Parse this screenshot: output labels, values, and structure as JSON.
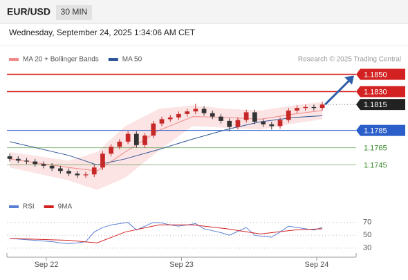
{
  "header": {
    "symbol": "EUR/USD",
    "timeframe": "30 MIN",
    "datetime": "Wednesday, September 24, 2025 1:34:06 AM CET"
  },
  "chart_data": [
    {
      "type": "candlestick",
      "legend": [
        {
          "name": "MA 20 + Bollinger Bands",
          "color": "#ef8a8a"
        },
        {
          "name": "MA 50",
          "color": "#2f5597"
        }
      ],
      "source": "Research © 2025 Trading Central",
      "xlim": [
        -7,
        55
      ],
      "xticks": [
        {
          "value": 0,
          "label": "Sep 22"
        },
        {
          "value": 24,
          "label": "Sep 23"
        },
        {
          "value": 48,
          "label": "Sep 24"
        }
      ],
      "ylim": [
        1.1711,
        1.186
      ],
      "up_color": "#c62828",
      "down_color": "#333333",
      "x": [
        -6.5,
        -5,
        -3.5,
        -2,
        -0.5,
        1,
        2.5,
        4,
        5.5,
        7,
        8.5,
        10,
        11.5,
        13,
        14.5,
        16,
        17.5,
        19,
        20.5,
        22,
        23.5,
        25,
        26.5,
        28,
        29.5,
        31,
        32.5,
        34,
        35.5,
        37,
        38.5,
        40,
        41.5,
        43,
        44.5,
        46,
        47.5,
        49
      ],
      "open": [
        1.1755,
        1.1752,
        1.175,
        1.1749,
        1.1746,
        1.1744,
        1.1741,
        1.1738,
        1.1735,
        1.1733,
        1.1734,
        1.1742,
        1.1758,
        1.1766,
        1.1772,
        1.1781,
        1.1768,
        1.1779,
        1.1793,
        1.1798,
        1.18,
        1.1804,
        1.1807,
        1.181,
        1.1805,
        1.1801,
        1.1796,
        1.1789,
        1.1797,
        1.1806,
        1.1795,
        1.1792,
        1.179,
        1.1797,
        1.1808,
        1.1811,
        1.1812,
        1.1811
      ],
      "high": [
        1.1758,
        1.1755,
        1.1753,
        1.1752,
        1.1749,
        1.1747,
        1.1744,
        1.1741,
        1.1738,
        1.1737,
        1.1745,
        1.1761,
        1.1769,
        1.1775,
        1.1784,
        1.1784,
        1.1782,
        1.1796,
        1.1801,
        1.1803,
        1.1807,
        1.181,
        1.1816,
        1.1813,
        1.1808,
        1.1804,
        1.1799,
        1.18,
        1.1809,
        1.1809,
        1.1798,
        1.1795,
        1.18,
        1.1811,
        1.1814,
        1.1815,
        1.1815,
        1.1818
      ],
      "low": [
        1.1749,
        1.1747,
        1.1746,
        1.1743,
        1.1741,
        1.1738,
        1.1735,
        1.1732,
        1.173,
        1.173,
        1.1731,
        1.1739,
        1.1755,
        1.1763,
        1.1769,
        1.1765,
        1.1765,
        1.1776,
        1.179,
        1.1795,
        1.1797,
        1.1801,
        1.1804,
        1.1802,
        1.1798,
        1.1793,
        1.1784,
        1.1786,
        1.1794,
        1.1792,
        1.1789,
        1.1786,
        1.1787,
        1.1794,
        1.1805,
        1.1808,
        1.1808,
        1.1808
      ],
      "close": [
        1.1752,
        1.175,
        1.1749,
        1.1746,
        1.1744,
        1.1741,
        1.1738,
        1.1735,
        1.1733,
        1.1734,
        1.1742,
        1.1758,
        1.1766,
        1.1772,
        1.1781,
        1.1768,
        1.1779,
        1.1793,
        1.1798,
        1.18,
        1.1804,
        1.1807,
        1.181,
        1.1805,
        1.1801,
        1.1796,
        1.1789,
        1.1797,
        1.1806,
        1.1795,
        1.1792,
        1.179,
        1.1797,
        1.1808,
        1.1811,
        1.1812,
        1.1811,
        1.1815
      ],
      "ma_x": [
        -6.5,
        4,
        9,
        14,
        20,
        26,
        32,
        38,
        44,
        49
      ],
      "bb_upper": [
        1.176,
        1.175,
        1.176,
        1.179,
        1.181,
        1.1814,
        1.181,
        1.1808,
        1.1814,
        1.1818
      ],
      "bb_lower": [
        1.1742,
        1.1727,
        1.1716,
        1.173,
        1.1762,
        1.179,
        1.1788,
        1.1786,
        1.1793,
        1.1798
      ],
      "ma20": [
        1.1752,
        1.1742,
        1.1738,
        1.176,
        1.1785,
        1.1801,
        1.18,
        1.1798,
        1.1804,
        1.1808
      ],
      "ma50": [
        1.1772,
        1.1756,
        1.1745,
        1.1752,
        1.1763,
        1.1775,
        1.1786,
        1.1795,
        1.18,
        1.1802
      ],
      "levels": [
        {
          "value": {
            "value": 1.185,
            "label": "1.1850"
          },
          "color": "#d32020",
          "style": "box",
          "line": "solid"
        },
        {
          "value": {
            "value": 1.183,
            "label": "1.1830"
          },
          "color": "#d32020",
          "style": "box",
          "line": "solid"
        },
        {
          "value": 1.1815,
          "color": "#222222",
          "style": "box",
          "line": "dotted"
        },
        {
          "value": 1.1785,
          "color": "#2a5ec9",
          "style": "box",
          "line": "solid"
        },
        {
          "value": 1.1765,
          "color": "#3a8a2a",
          "style": "text",
          "line": "solid"
        },
        {
          "value": 1.1745,
          "color": "#3a8a2a",
          "style": "text",
          "line": "solid"
        }
      ]
    },
    {
      "type": "line",
      "legend": [
        {
          "name": "RSI",
          "color": "#5b7fd6"
        },
        {
          "name": "9MA",
          "color": "#d32020"
        }
      ],
      "ylim": [
        18,
        76
      ],
      "yticks": [
        70,
        50,
        30
      ],
      "x": [
        -6.5,
        -5,
        -3.5,
        -2,
        -0.5,
        1,
        2.5,
        4,
        5.5,
        7,
        8.5,
        10,
        11.5,
        13,
        14.5,
        16,
        17.5,
        19,
        20.5,
        22,
        23.5,
        25,
        26.5,
        28,
        29.5,
        31,
        32.5,
        34,
        35.5,
        37,
        38.5,
        40,
        41.5,
        43,
        44.5,
        46,
        47.5,
        49
      ],
      "rsi": [
        45,
        44,
        43,
        42,
        41,
        40,
        38,
        37,
        38,
        40,
        55,
        62,
        66,
        68,
        70,
        58,
        64,
        70,
        69,
        66,
        64,
        66,
        68,
        60,
        57,
        54,
        50,
        56,
        62,
        50,
        48,
        47,
        55,
        64,
        62,
        60,
        58,
        62
      ],
      "ma_x": [
        -6.5,
        4,
        9,
        14,
        20,
        26,
        32,
        38,
        44,
        49
      ],
      "rsi_ma": [
        45,
        42,
        38,
        55,
        66,
        66,
        60,
        52,
        58,
        60
      ]
    }
  ]
}
